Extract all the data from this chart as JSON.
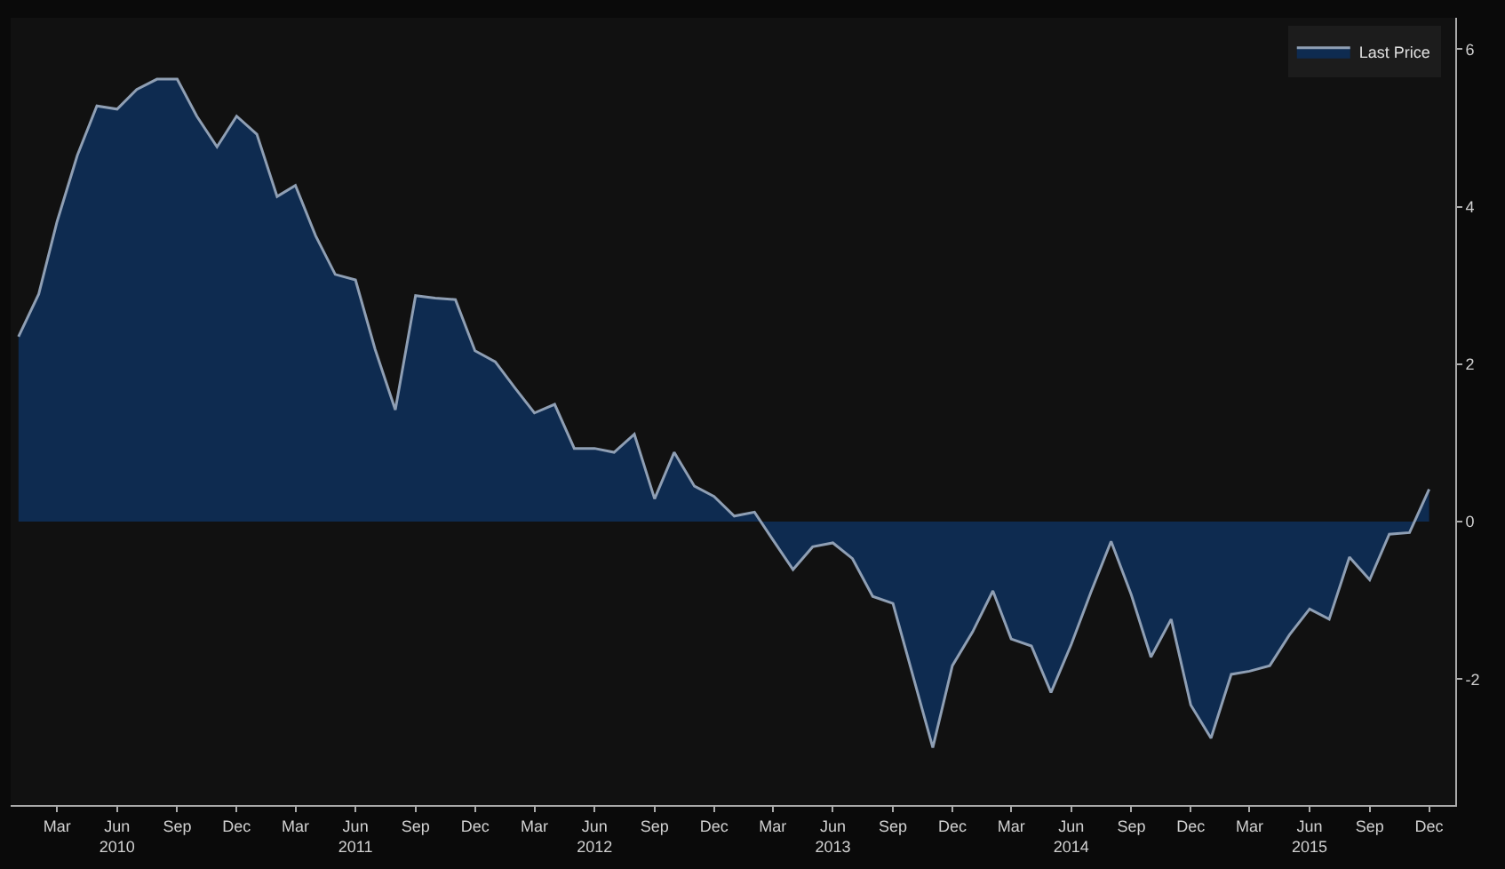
{
  "chart_data": {
    "type": "area",
    "legend": "top right",
    "x": [
      "2010-01",
      "2010-02",
      "2010-03",
      "2010-04",
      "2010-05",
      "2010-06",
      "2010-07",
      "2010-08",
      "2010-09",
      "2010-10",
      "2010-11",
      "2010-12",
      "2011-01",
      "2011-02",
      "2011-03",
      "2011-04",
      "2011-05",
      "2011-06",
      "2011-07",
      "2011-08",
      "2011-09",
      "2011-10",
      "2011-11",
      "2011-12",
      "2012-01",
      "2012-02",
      "2012-03",
      "2012-04",
      "2012-05",
      "2012-06",
      "2012-07",
      "2012-08",
      "2012-09",
      "2012-10",
      "2012-11",
      "2012-12",
      "2013-01",
      "2013-02",
      "2013-03",
      "2013-04",
      "2013-05",
      "2013-06",
      "2013-07",
      "2013-08",
      "2013-09",
      "2013-10",
      "2013-11",
      "2013-12",
      "2014-01",
      "2014-02",
      "2014-03",
      "2014-04",
      "2014-05",
      "2014-06",
      "2014-07",
      "2014-08",
      "2014-09",
      "2014-10",
      "2014-11",
      "2014-12",
      "2015-01",
      "2015-02",
      "2015-03",
      "2015-04",
      "2015-05",
      "2015-06",
      "2015-07",
      "2015-08",
      "2015-09",
      "2015-10",
      "2015-11",
      "2015-12"
    ],
    "series": [
      {
        "name": "Last Price",
        "color": "#0e2b50",
        "values": [
          2.35,
          2.89,
          3.81,
          4.65,
          5.28,
          5.24,
          5.49,
          5.62,
          5.62,
          5.15,
          4.76,
          5.15,
          4.92,
          4.13,
          4.27,
          3.63,
          3.14,
          3.07,
          2.19,
          1.42,
          2.87,
          2.84,
          2.82,
          2.17,
          2.03,
          1.69,
          1.38,
          1.49,
          0.93,
          0.93,
          0.88,
          1.11,
          0.29,
          0.88,
          0.45,
          0.32,
          0.07,
          0.12,
          -0.23,
          -0.61,
          -0.32,
          -0.27,
          -0.47,
          -0.95,
          -1.04,
          -1.94,
          -2.87,
          -1.83,
          -1.4,
          -0.88,
          -1.49,
          -1.58,
          -2.17,
          -1.56,
          -0.9,
          -0.25,
          -0.93,
          -1.72,
          -1.24,
          -2.33,
          -2.75,
          -1.94,
          -1.9,
          -1.83,
          -1.44,
          -1.11,
          -1.24,
          -0.45,
          -0.74,
          -0.16,
          -0.14,
          0.41
        ]
      }
    ],
    "xlim": [
      "2009-12-20",
      "2016-01-10"
    ],
    "xticks": [
      {
        "value": "2010-03",
        "label": "Mar"
      },
      {
        "value": "2010-06",
        "label": "Jun\n2010"
      },
      {
        "value": "2010-09",
        "label": "Sep"
      },
      {
        "value": "2010-12",
        "label": "Dec"
      },
      {
        "value": "2011-03",
        "label": "Mar"
      },
      {
        "value": "2011-06",
        "label": "Jun\n2011"
      },
      {
        "value": "2011-09",
        "label": "Sep"
      },
      {
        "value": "2011-12",
        "label": "Dec"
      },
      {
        "value": "2012-03",
        "label": "Mar"
      },
      {
        "value": "2012-06",
        "label": "Jun\n2012"
      },
      {
        "value": "2012-09",
        "label": "Sep"
      },
      {
        "value": "2012-12",
        "label": "Dec"
      },
      {
        "value": "2013-03",
        "label": "Mar"
      },
      {
        "value": "2013-06",
        "label": "Jun\n2013"
      },
      {
        "value": "2013-09",
        "label": "Sep"
      },
      {
        "value": "2013-12",
        "label": "Dec"
      },
      {
        "value": "2014-03",
        "label": "Mar"
      },
      {
        "value": "2014-06",
        "label": "Jun\n2014"
      },
      {
        "value": "2014-09",
        "label": "Sep"
      },
      {
        "value": "2014-12",
        "label": "Dec"
      },
      {
        "value": "2015-03",
        "label": "Mar"
      },
      {
        "value": "2015-06",
        "label": "Jun\n2015"
      },
      {
        "value": "2015-09",
        "label": "Sep"
      },
      {
        "value": "2015-12",
        "label": "Dec"
      }
    ],
    "ylim": [
      -3.6,
      6.4
    ],
    "yticks": [
      -2,
      0,
      2,
      4,
      6
    ]
  }
}
